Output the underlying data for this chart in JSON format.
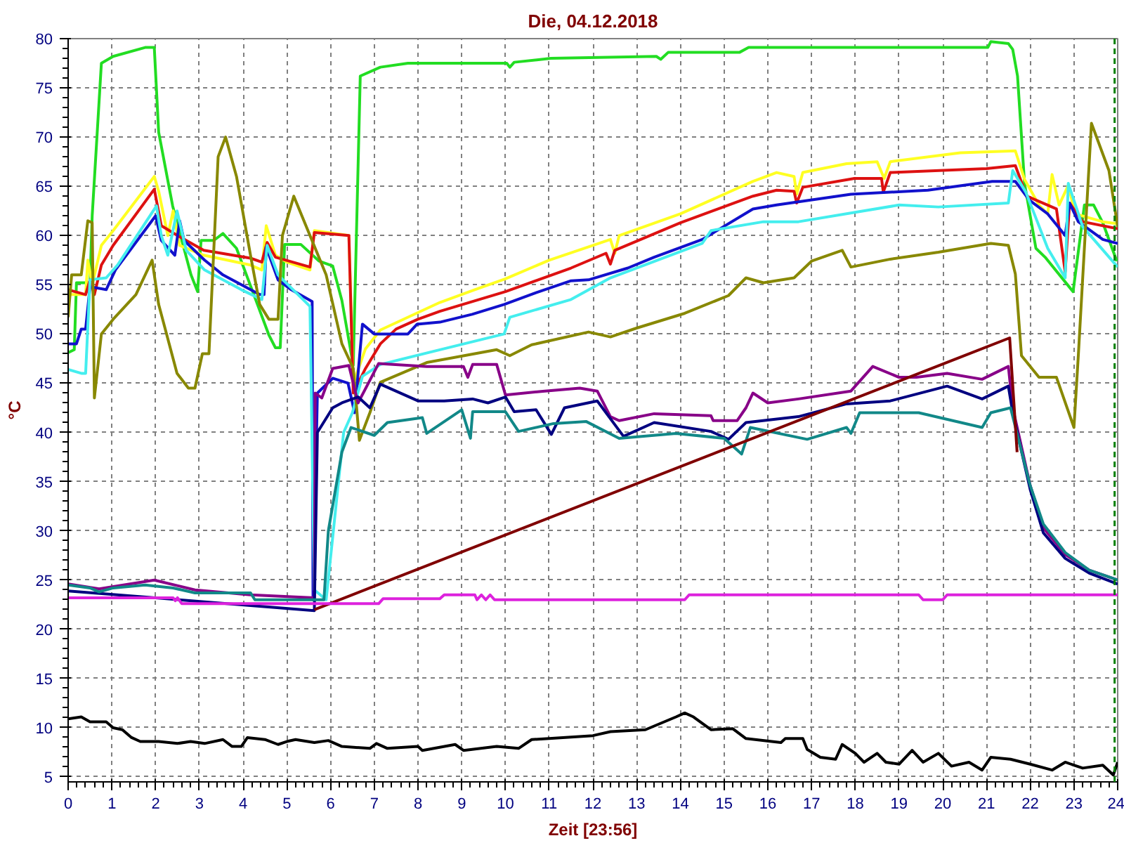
{
  "chart_data": {
    "type": "line",
    "title": "Die, 04.12.2018",
    "xlabel": "Zeit [23:56]",
    "ylabel": "°C",
    "xlim": [
      0,
      24
    ],
    "ylim": [
      4.5,
      80
    ],
    "xticks": [
      0,
      1,
      2,
      3,
      4,
      5,
      6,
      7,
      8,
      9,
      10,
      11,
      12,
      13,
      14,
      15,
      16,
      17,
      18,
      19,
      20,
      21,
      22,
      23,
      24
    ],
    "yticks": [
      5,
      10,
      15,
      20,
      25,
      30,
      35,
      40,
      45,
      50,
      55,
      60,
      65,
      70,
      75,
      80
    ],
    "grid": true,
    "marker": "none",
    "line_style": "solid",
    "ref_lines": [
      {
        "axis": "x",
        "value": 23.93,
        "color": "#008000",
        "line_style": "dashed"
      }
    ],
    "series": [
      {
        "color": "#22dd22",
        "x": [
          0,
          0.14,
          0.19,
          0.5,
          0.55,
          0.76,
          1.03,
          1.76,
          1.97,
          2.07,
          2.39,
          2.81,
          2.96,
          3.04,
          3.33,
          3.54,
          3.85,
          4.22,
          4.59,
          4.74,
          4.85,
          4.95,
          5.32,
          5.74,
          6.05,
          6.26,
          6.52,
          6.68,
          7.14,
          7.77,
          10.03,
          10.1,
          10.2,
          11.04,
          13.45,
          13.55,
          13.72,
          15.35,
          15.56,
          21.03,
          21.1,
          21.5,
          21.6,
          21.71,
          21.87,
          22.13,
          22.34,
          22.98,
          23.24,
          23.45,
          23.66,
          23.98
        ],
        "values": [
          48.1,
          48.4,
          55.2,
          55.2,
          62,
          77.5,
          78.2,
          79.1,
          79.1,
          70.5,
          63,
          56,
          54.3,
          59.5,
          59.5,
          60.2,
          58.7,
          54.3,
          49.9,
          48.6,
          48.6,
          59.1,
          59.1,
          57.4,
          56.9,
          53.4,
          46.8,
          76.2,
          77.1,
          77.5,
          77.5,
          77.1,
          77.6,
          78,
          78.2,
          77.9,
          78.6,
          78.6,
          79.1,
          79.1,
          79.7,
          79.5,
          78.9,
          76.2,
          65.3,
          58.7,
          57.8,
          54.3,
          63.1,
          63.1,
          61.3,
          57.4
        ]
      },
      {
        "color": "#ffff22",
        "x": [
          0,
          0.4,
          0.45,
          0.55,
          0.76,
          1.03,
          1.97,
          2.07,
          2.28,
          2.4,
          2.55,
          3.1,
          4.17,
          4.43,
          4.53,
          4.74,
          5.0,
          5.53,
          5.63,
          6.42,
          6.52,
          6.8,
          7.14,
          8.5,
          9.3,
          10,
          11,
          12.4,
          12.5,
          12.6,
          14,
          15.66,
          16.2,
          16.6,
          16.66,
          16.8,
          17.8,
          18.5,
          18.66,
          18.8,
          20.4,
          21.66,
          21.87,
          22.2,
          22.4,
          22.5,
          22.66,
          22.87,
          23.03,
          23.66,
          24
        ],
        "values": [
          54,
          54,
          57.5,
          55,
          59,
          60.5,
          66,
          64.5,
          60,
          62.5,
          59,
          58,
          57,
          56.5,
          61,
          58,
          57.3,
          56.5,
          60.5,
          60,
          45,
          48.5,
          50.4,
          53.2,
          54.5,
          55.6,
          57.5,
          59.6,
          58.2,
          60,
          62.2,
          65.5,
          66.4,
          66,
          64.2,
          66.4,
          67.3,
          67.5,
          65.8,
          67.5,
          68.4,
          68.6,
          65.7,
          63.1,
          62.2,
          66.2,
          63.1,
          65.1,
          62.2,
          61.4,
          61.2
        ]
      },
      {
        "color": "#dd1111",
        "x": [
          0,
          0.4,
          0.5,
          0.6,
          0.76,
          1.03,
          1.97,
          2.13,
          2.5,
          3.1,
          4.17,
          4.43,
          4.55,
          4.74,
          5.53,
          5.63,
          6.42,
          6.52,
          6.8,
          7.14,
          7.5,
          8,
          8.5,
          10,
          11.5,
          12.3,
          12.4,
          12.5,
          14,
          15.66,
          16.2,
          16.6,
          16.66,
          16.8,
          17.98,
          18.6,
          18.64,
          18.8,
          21,
          21.66,
          21.92,
          22.6,
          22.8,
          22.9,
          23.2,
          24
        ],
        "values": [
          54.5,
          54,
          55.5,
          54,
          57,
          59,
          64.7,
          61,
          60,
          58.5,
          57.7,
          57.3,
          59.3,
          57.8,
          56.8,
          60.3,
          60,
          44,
          46.5,
          49,
          50.5,
          51.5,
          52.3,
          54.3,
          56.7,
          58.2,
          57.1,
          58.5,
          61.3,
          64,
          64.6,
          64.5,
          63.3,
          64.9,
          65.8,
          65.8,
          64.4,
          66.4,
          66.8,
          67.1,
          64,
          62.7,
          56.3,
          63.3,
          61.4,
          60.7
        ]
      },
      {
        "color": "#1111cc",
        "x": [
          0,
          0.19,
          0.3,
          0.4,
          0.5,
          0.87,
          1.08,
          2,
          2.13,
          2.44,
          2.55,
          2.65,
          3.12,
          3.54,
          3.96,
          4.38,
          4.48,
          4.53,
          4.8,
          5.1,
          5.58,
          5.6,
          5.7,
          6.05,
          6.4,
          6.55,
          6.73,
          7.0,
          7.77,
          7.98,
          8.5,
          9.24,
          9.97,
          10.7,
          11.5,
          11.9,
          12.8,
          13.4,
          14.5,
          15.66,
          16.2,
          17.9,
          19.66,
          21.13,
          21.66,
          21.98,
          22.4,
          22.8,
          22.9,
          23.1,
          23.66,
          24
        ],
        "values": [
          49,
          49,
          50.5,
          50.5,
          54.8,
          54.5,
          56.5,
          62,
          59.5,
          58,
          61.5,
          59.5,
          57.5,
          56,
          55,
          54,
          54,
          58.8,
          55.5,
          54.5,
          53.3,
          23,
          44,
          45.5,
          45,
          42,
          51,
          50,
          50,
          51,
          51.2,
          52,
          53,
          54.2,
          55.4,
          55.5,
          56.7,
          57.8,
          59.6,
          62.7,
          63.1,
          64.2,
          64.6,
          65.5,
          65.5,
          63.6,
          62.2,
          60,
          63.3,
          61.4,
          59.6,
          59.2
        ]
      },
      {
        "color": "#44eeee",
        "x": [
          0,
          0.3,
          0.4,
          0.5,
          0.87,
          1.13,
          2.02,
          2.13,
          2.28,
          2.49,
          2.7,
          3.12,
          3.96,
          4.43,
          4.55,
          4.8,
          5.53,
          5.63,
          5.9,
          6.3,
          6.5,
          6.73,
          7.14,
          8.5,
          9.97,
          10.1,
          11.5,
          12.4,
          14.5,
          14.7,
          15.9,
          16.7,
          19,
          19.9,
          21.5,
          21.6,
          21.9,
          22.4,
          22.8,
          22.87,
          23.2,
          24
        ],
        "values": [
          46.4,
          46,
          46,
          55.5,
          55.7,
          57,
          63,
          60,
          58,
          62.5,
          58.5,
          56.5,
          54.5,
          53.5,
          59,
          56,
          52.8,
          24,
          23,
          40,
          42,
          45.7,
          46.9,
          48.4,
          50,
          51.7,
          53.5,
          55.7,
          59.2,
          60.5,
          61.4,
          61.4,
          63.1,
          62.9,
          63.3,
          66.6,
          64.4,
          58.7,
          55.7,
          65.3,
          60.9,
          56.8
        ]
      },
      {
        "color": "#888800",
        "x": [
          0,
          0.08,
          0.3,
          0.45,
          0.55,
          0.6,
          0.76,
          1.03,
          1.55,
          1.92,
          2.07,
          2.49,
          2.75,
          2.9,
          3.07,
          3.22,
          3.43,
          3.6,
          3.85,
          4.17,
          4.38,
          4.59,
          4.8,
          4.9,
          5.16,
          5.53,
          5.9,
          6.26,
          6.52,
          6.66,
          6.9,
          7.14,
          8.2,
          9.8,
          10.1,
          10.6,
          11.9,
          12.4,
          13,
          14.1,
          15.1,
          15.5,
          15.9,
          16.6,
          17,
          17.7,
          17.9,
          18.8,
          19.9,
          21.1,
          21.5,
          21.66,
          21.8,
          22.2,
          22.6,
          23,
          23.1,
          23.4,
          23.8,
          24
        ],
        "values": [
          51.7,
          56,
          56,
          61.5,
          61.3,
          43.5,
          50,
          51.5,
          54,
          57.5,
          53,
          46,
          44.5,
          44.5,
          48,
          48,
          68,
          70,
          66,
          58,
          53,
          51.5,
          51.5,
          60,
          64,
          60,
          56,
          49,
          46.5,
          39.2,
          42,
          45.1,
          47.1,
          48.4,
          47.8,
          48.9,
          50.2,
          49.7,
          50.6,
          52.1,
          53.9,
          55.7,
          55.2,
          55.7,
          57.4,
          58.5,
          56.8,
          57.6,
          58.3,
          59.2,
          59,
          56.1,
          47.8,
          45.6,
          45.6,
          40.5,
          47.8,
          71.4,
          66.6,
          60.9
        ]
      },
      {
        "color": "#880088",
        "x": [
          0,
          0.71,
          1.97,
          2.9,
          4.17,
          5.63,
          5.65,
          5.8,
          6.05,
          6.42,
          6.63,
          7.1,
          8.2,
          9.04,
          9.14,
          9.25,
          9.8,
          10,
          10.9,
          11.7,
          12.1,
          12.4,
          12.6,
          13.4,
          14.7,
          14.75,
          15.3,
          15.5,
          15.66,
          16,
          16.7,
          17.9,
          18.4,
          19,
          19.4,
          20.1,
          20.9,
          21.5,
          21.6,
          22,
          22.3,
          22.8,
          23.35,
          24
        ],
        "values": [
          24.6,
          24.1,
          25,
          24,
          23.5,
          23.2,
          44,
          43.5,
          46.5,
          46.8,
          43,
          47,
          46.7,
          46.7,
          45.6,
          46.9,
          46.9,
          43.8,
          44.2,
          44.5,
          44.2,
          41.6,
          41.2,
          41.9,
          41.7,
          41.2,
          41.2,
          42.5,
          44,
          43,
          43.4,
          44.2,
          46.7,
          45.6,
          45.6,
          46,
          45.4,
          46.7,
          42.5,
          34.6,
          30.3,
          27.6,
          26,
          25
        ]
      },
      {
        "color": "#000080",
        "x": [
          0,
          5.63,
          5.7,
          6.05,
          6.26,
          6.63,
          6.9,
          7.14,
          8,
          8.6,
          9.25,
          9.6,
          10,
          10.2,
          10.7,
          11.05,
          11.35,
          12.1,
          12.5,
          12.7,
          13.4,
          14.7,
          15.1,
          15.5,
          16.7,
          17.8,
          18.8,
          20.1,
          20.9,
          21.5,
          21.6,
          22,
          22.3,
          22.8,
          23.35,
          24
        ],
        "values": [
          23.9,
          21.9,
          40,
          42.5,
          43,
          43.6,
          42.5,
          44.9,
          43.2,
          43.2,
          43.4,
          43,
          43.6,
          42.1,
          42.3,
          39.8,
          42.5,
          43.2,
          40.8,
          39.6,
          41,
          40.1,
          39.3,
          41,
          41.6,
          42.9,
          43.2,
          44.7,
          43.4,
          44.7,
          42,
          34.2,
          29.8,
          27.2,
          25.7,
          24.6
        ]
      },
      {
        "color": "#118888",
        "x": [
          0,
          0.5,
          0.71,
          1.03,
          1.76,
          2.4,
          2.9,
          4.17,
          4.27,
          5.63,
          5.85,
          5.95,
          6.26,
          6.47,
          7,
          7.3,
          8.1,
          8.2,
          9,
          9.2,
          9.25,
          10,
          10.3,
          11.1,
          11.85,
          12.6,
          13.9,
          15,
          15.4,
          15.6,
          16.9,
          17.8,
          17.9,
          18.1,
          19.45,
          20.9,
          21.1,
          21.55,
          22,
          22.3,
          22.8,
          23.35,
          24
        ],
        "values": [
          24.5,
          24.2,
          23.8,
          24.2,
          24.5,
          24.2,
          23.7,
          23.7,
          23,
          23,
          23,
          30,
          38,
          40.5,
          39.7,
          41,
          41.5,
          39.9,
          42.3,
          39.4,
          42.1,
          42.1,
          40.1,
          40.9,
          41.1,
          39.4,
          39.9,
          39.4,
          37.8,
          40.5,
          39.3,
          40.5,
          39.9,
          42,
          42,
          40.5,
          42,
          42.5,
          34.6,
          30.7,
          27.8,
          26,
          25
        ]
      },
      {
        "color": "#800000",
        "x": [
          5.63,
          21.53,
          21.7
        ],
        "values": [
          22,
          49.6,
          38
        ]
      },
      {
        "color": "#dd22dd",
        "x": [
          0,
          2.4,
          2.45,
          2.5,
          2.6,
          5.63,
          7.1,
          7.2,
          8.5,
          8.6,
          9.3,
          9.35,
          9.45,
          9.55,
          9.65,
          9.75,
          14.1,
          14.2,
          19.45,
          19.55,
          20,
          20.1,
          24
        ],
        "values": [
          23.2,
          23.2,
          22.9,
          23.2,
          22.6,
          22.6,
          22.6,
          23.1,
          23.1,
          23.5,
          23.5,
          23,
          23.5,
          23,
          23.5,
          23,
          23,
          23.5,
          23.5,
          23,
          23,
          23.5,
          23.5
        ]
      },
      {
        "color": "#000000",
        "x": [
          0,
          0.3,
          0.5,
          0.87,
          1.03,
          1.24,
          1.45,
          1.65,
          2.07,
          2.5,
          2.8,
          3.12,
          3.54,
          3.75,
          3.96,
          4.1,
          4.5,
          4.8,
          5,
          5.2,
          5.63,
          5.95,
          6.26,
          6.9,
          7.05,
          7.3,
          8,
          8.1,
          8.85,
          9.04,
          9.8,
          10.3,
          10.6,
          11,
          12,
          12.4,
          13.2,
          13.9,
          14.1,
          14.3,
          14.7,
          15.2,
          15.5,
          16.3,
          16.4,
          16.8,
          16.9,
          17.2,
          17.55,
          17.7,
          18,
          18.2,
          18.5,
          18.7,
          19,
          19.3,
          19.55,
          19.9,
          20.2,
          20.6,
          20.9,
          21.1,
          21.55,
          22,
          22.5,
          22.8,
          23.2,
          23.66,
          23.9,
          24
        ],
        "values": [
          10.9,
          11.1,
          10.6,
          10.6,
          10,
          9.8,
          9,
          8.6,
          8.6,
          8.4,
          8.6,
          8.4,
          8.8,
          8.1,
          8.1,
          9,
          8.8,
          8.3,
          8.6,
          8.8,
          8.5,
          8.7,
          8.1,
          7.9,
          8.4,
          7.9,
          8.1,
          7.7,
          8.3,
          7.7,
          8.1,
          7.9,
          8.8,
          8.9,
          9.2,
          9.6,
          9.8,
          11.1,
          11.5,
          11.1,
          9.8,
          9.9,
          8.9,
          8.5,
          8.9,
          8.9,
          7.8,
          7,
          6.8,
          8.3,
          7.4,
          6.5,
          7.4,
          6.5,
          6.3,
          7.7,
          6.5,
          7.4,
          6.1,
          6.5,
          5.7,
          7,
          6.8,
          6.3,
          5.7,
          6.5,
          5.9,
          6.2,
          5.2,
          6.5
        ]
      }
    ]
  }
}
